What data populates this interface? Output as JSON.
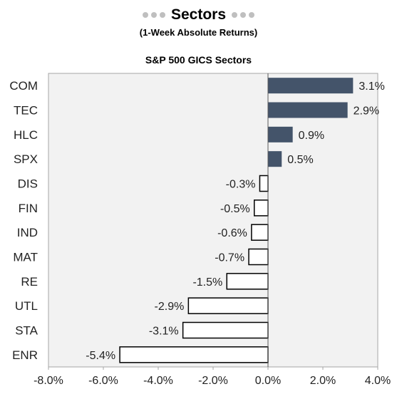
{
  "header": {
    "title": "Sectors",
    "subtitle": "(1-Week Absolute Returns)"
  },
  "chart_data": {
    "type": "bar",
    "orientation": "horizontal",
    "title": "S&P 500 GICS Sectors",
    "categories": [
      "COM",
      "TEC",
      "HLC",
      "SPX",
      "DIS",
      "FIN",
      "IND",
      "MAT",
      "RE",
      "UTL",
      "STA",
      "ENR"
    ],
    "values": [
      3.1,
      2.9,
      0.9,
      0.5,
      -0.3,
      -0.5,
      -0.6,
      -0.7,
      -1.5,
      -2.9,
      -3.1,
      -5.4
    ],
    "value_labels": [
      "3.1%",
      "2.9%",
      "0.9%",
      "0.5%",
      "-0.3%",
      "-0.5%",
      "-0.6%",
      "-0.7%",
      "-1.5%",
      "-2.9%",
      "-3.1%",
      "-5.4%"
    ],
    "xlim": [
      -8.0,
      4.0
    ],
    "xticks": [
      -8.0,
      -6.0,
      -4.0,
      -2.0,
      0.0,
      2.0,
      4.0
    ],
    "xtick_labels": [
      "-8.0%",
      "-6.0%",
      "-4.0%",
      "-2.0%",
      "0.0%",
      "2.0%",
      "4.0%"
    ],
    "grid": false,
    "colors": {
      "positive_fill": "#44546a",
      "negative_fill": "#ffffff",
      "negative_stroke": "#000000",
      "plot_background": "#f2f2f2",
      "header_dots": "#bfbfbf"
    }
  }
}
